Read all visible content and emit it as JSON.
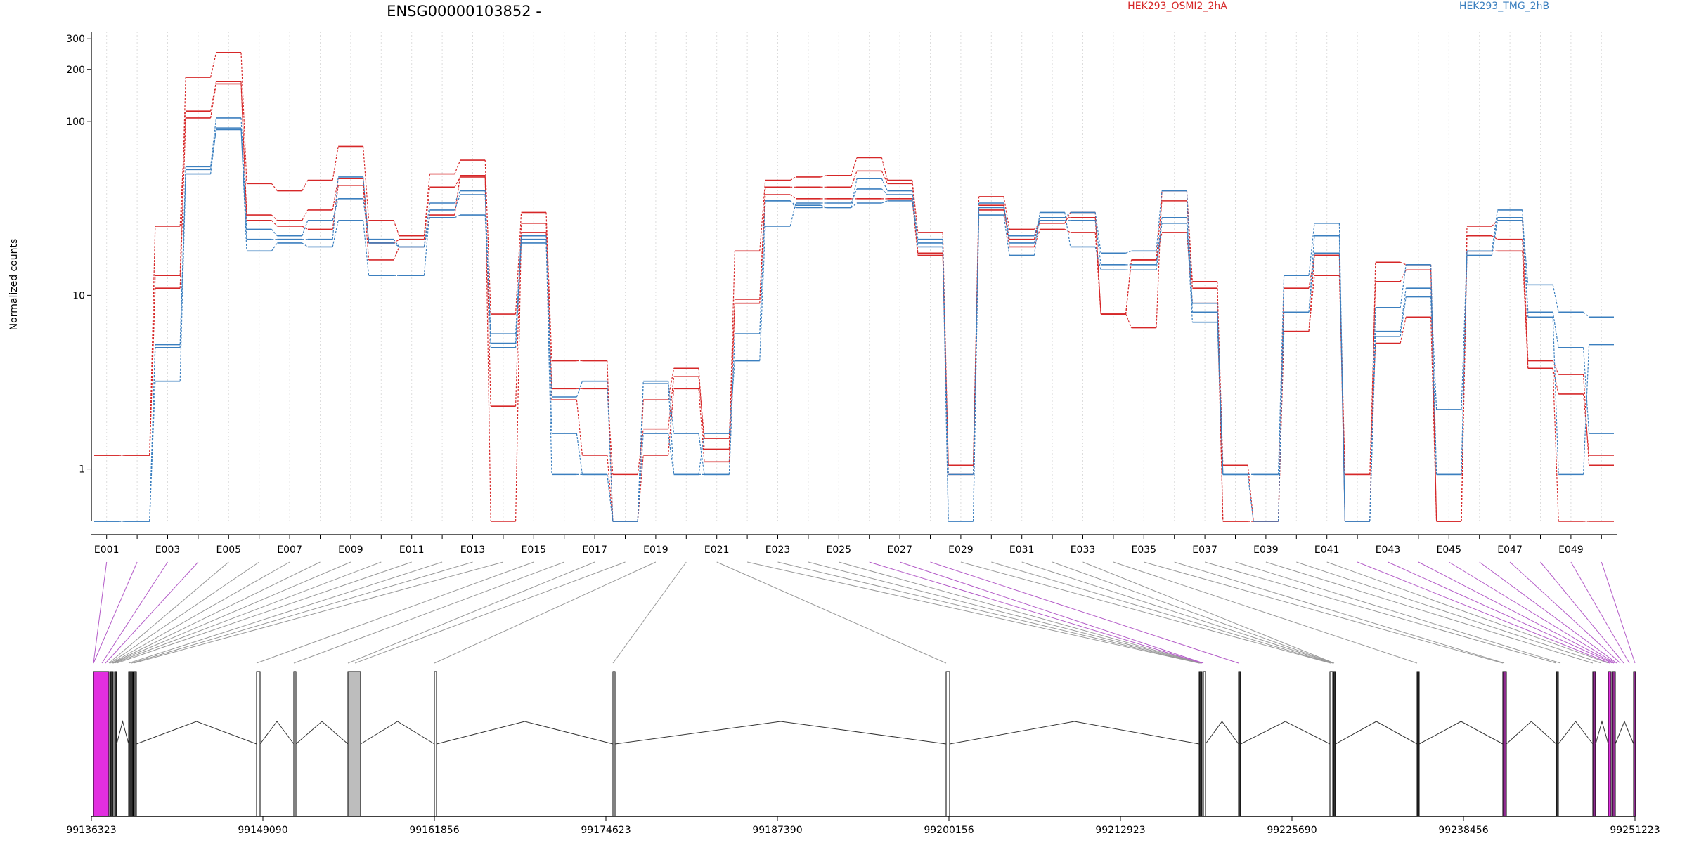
{
  "chart_data": {
    "type": "line",
    "title": "ENSG00000103852 -",
    "ylabel": "Normalized counts",
    "y_scale": "log",
    "ylim": [
      0.5,
      330
    ],
    "y_ticks": [
      1,
      10,
      100,
      200,
      300
    ],
    "y_tick_labels": [
      "1",
      "10",
      "100",
      "200",
      "300"
    ],
    "exon_labels_shown": [
      "E001",
      "E003",
      "E005",
      "E007",
      "E009",
      "E011",
      "E013",
      "E015",
      "E017",
      "E019",
      "E021",
      "E023",
      "E025",
      "E027",
      "E029",
      "E031",
      "E033",
      "E035",
      "E037",
      "E039",
      "E041",
      "E043",
      "E045",
      "E047",
      "E049"
    ],
    "legend": [
      {
        "label": "HEK293_OSMI2_2hA",
        "color": "#d62728"
      },
      {
        "label": "HEK293_TMG_2hB",
        "color": "#3b7fbf"
      }
    ],
    "series": [
      {
        "group": "HEK293_OSMI2_2hA",
        "color": "#d62728",
        "values": [
          1.2,
          1.2,
          13,
          180,
          250,
          44,
          40,
          46,
          72,
          27,
          22,
          50,
          60,
          7.8,
          30,
          4.2,
          4.2,
          0.5,
          2.5,
          3.8,
          1.3,
          18,
          46,
          48,
          49,
          62,
          46,
          23,
          1.05,
          37,
          24,
          26,
          30,
          7.8,
          6.5,
          40,
          12,
          0.5,
          0.5,
          11,
          17,
          0.5,
          15.5,
          15,
          0.5,
          25,
          27,
          4.2,
          3.5,
          1.05
        ]
      },
      {
        "group": "HEK293_OSMI2_2hA",
        "color": "#d62728",
        "values": [
          1.2,
          1.2,
          25,
          115,
          170,
          29,
          27,
          31,
          47,
          20,
          21,
          42,
          48,
          2.3,
          26,
          2.9,
          2.9,
          0.93,
          1.7,
          3.4,
          1.5,
          9.5,
          42,
          42,
          42,
          52,
          44,
          17.5,
          0.93,
          31,
          21,
          28,
          28,
          7.8,
          16,
          35,
          11,
          1.05,
          0.5,
          6.2,
          13,
          0.93,
          12,
          14,
          0.5,
          22,
          21,
          3.8,
          2.7,
          1.2
        ]
      },
      {
        "group": "HEK293_OSMI2_2hA",
        "color": "#d62728",
        "values": [
          1.2,
          1.2,
          11,
          105,
          165,
          27,
          25,
          24,
          43,
          16,
          19,
          29,
          49,
          0.5,
          23,
          2.5,
          1.2,
          0.5,
          1.2,
          2.9,
          1.1,
          9,
          38,
          36,
          36,
          36,
          36,
          17,
          1.05,
          33,
          19,
          24,
          23,
          7.8,
          16,
          23,
          9,
          0.5,
          0.5,
          6.2,
          17,
          0.93,
          5.3,
          7.5,
          0.5,
          18,
          18,
          3.8,
          0.5,
          0.5
        ]
      },
      {
        "group": "HEK293_TMG_2hB",
        "color": "#3b7fbf",
        "values": [
          0.5,
          0.5,
          5.2,
          55,
          105,
          24,
          22,
          27,
          36,
          21,
          19,
          28,
          29,
          6,
          22,
          1.6,
          0.93,
          0.5,
          1.6,
          0.93,
          1.6,
          4.2,
          25,
          34,
          34,
          41,
          38,
          21,
          0.5,
          34,
          20,
          27,
          27,
          15,
          15,
          28,
          9,
          0.93,
          0.5,
          8,
          22,
          0.5,
          6.2,
          11,
          2.2,
          18,
          31,
          8,
          5,
          1.6
        ]
      },
      {
        "group": "HEK293_TMG_2hB",
        "color": "#3b7fbf",
        "values": [
          0.5,
          0.5,
          3.2,
          50,
          92,
          18,
          20,
          19,
          27,
          13,
          13,
          31,
          38,
          5.3,
          21,
          0.93,
          0.93,
          0.5,
          3.1,
          0.93,
          0.93,
          6,
          35,
          32,
          32,
          47,
          40,
          19,
          0.5,
          29,
          17,
          30,
          19,
          14,
          14,
          26,
          7,
          0.93,
          0.93,
          13,
          26,
          0.5,
          5.8,
          9.8,
          0.93,
          18,
          28,
          11.5,
          8,
          7.5
        ]
      },
      {
        "group": "HEK293_TMG_2hB",
        "color": "#3b7fbf",
        "values": [
          0.5,
          0.5,
          5,
          53,
          90,
          21,
          21,
          21,
          48,
          20,
          19,
          34,
          40,
          5,
          20,
          2.6,
          3.2,
          0.5,
          3.2,
          1.6,
          0.93,
          6,
          35,
          33,
          32,
          34,
          35,
          20,
          0.93,
          32,
          22,
          28,
          30,
          17.5,
          18,
          40,
          8,
          0.93,
          0.93,
          8,
          17.5,
          0.5,
          8.5,
          15,
          0.93,
          17,
          27,
          7.5,
          0.93,
          5.2
        ]
      }
    ],
    "genomic_ticks": [
      "99136323",
      "99149090",
      "99161856",
      "99174623",
      "99187390",
      "99200156",
      "99212923",
      "99225690",
      "99238456",
      "99251223"
    ],
    "gene_model_colors": {
      "highlight": "#e22fe0",
      "gray": "#bdbdbd",
      "purple": "#8e2c8e"
    }
  }
}
